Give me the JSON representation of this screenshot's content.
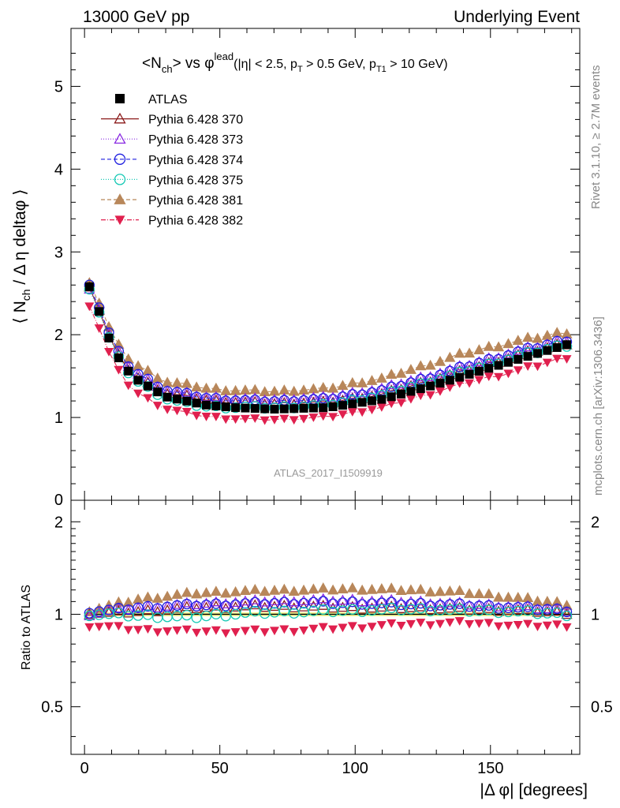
{
  "header": {
    "left": "13000 GeV pp",
    "right": "Underlying Event"
  },
  "plot_title": {
    "main": "<N",
    "main_sub": "ch",
    "main_rest": "> vs φ",
    "main_sup": "lead",
    "cut_open": "(|η| < 2.5, p",
    "cut_sub1": "T",
    "cut_mid": " > 0.5 GeV, p",
    "cut_sub2": "T1",
    "cut_close": " > 10 GeV)"
  },
  "side_text": {
    "rivet": "Rivet 3.1.10, ≥ 2.7M events",
    "mcplots": "mcplots.cern.ch [arXiv:1306.3436]"
  },
  "watermark": "ATLAS_2017_I1509919",
  "axes": {
    "top_ylabel_open": "⟨ N",
    "top_ylabel_sub": "ch",
    "top_ylabel_rest": " / Δ η deltaφ ⟩",
    "bottom_ylabel": "Ratio to ATLAS",
    "xlabel": "|Δ φ| [degrees]"
  },
  "colors": {
    "atlas": "#000000",
    "p370": "#8b1a1a",
    "p373": "#8a2be2",
    "p374": "#1f1fe0",
    "p375": "#14c8b4",
    "p381": "#b8875a",
    "p382": "#e0204e",
    "band": "#ffff99"
  },
  "legend": [
    {
      "name": "ATLAS",
      "marker": "square-filled",
      "color": "#000000",
      "dash": ""
    },
    {
      "name": "Pythia 6.428 370",
      "marker": "triangle-open",
      "color": "#8b1a1a",
      "dash": ""
    },
    {
      "name": "Pythia 6.428 373",
      "marker": "triangle-open",
      "color": "#8a2be2",
      "dash": "1,2"
    },
    {
      "name": "Pythia 6.428 374",
      "marker": "circle-open",
      "color": "#1f1fe0",
      "dash": "5,3"
    },
    {
      "name": "Pythia 6.428 375",
      "marker": "circle-open",
      "color": "#14c8b4",
      "dash": "1,2"
    },
    {
      "name": "Pythia 6.428 381",
      "marker": "triangle-filled",
      "color": "#b8875a",
      "dash": "5,3"
    },
    {
      "name": "Pythia 6.428 382",
      "marker": "triangledown-filled",
      "color": "#e0204e",
      "dash": "6,2,1,2"
    }
  ],
  "chart_data": {
    "type": "scatter",
    "x_range": [
      -5,
      183
    ],
    "top": {
      "ylim": [
        0,
        5.7
      ],
      "ytick_labels": [
        "1",
        "2",
        "3",
        "4",
        "5"
      ],
      "ytick_values": [
        1,
        2,
        3,
        4,
        5
      ],
      "y_zero_label": "0"
    },
    "bottom": {
      "ylim": [
        0.35,
        2.35
      ],
      "log_scale": true,
      "ytick_labels": [
        "0.5",
        "1",
        "2"
      ],
      "ytick_values": [
        0.5,
        1,
        2
      ]
    },
    "xtick_labels": [
      "0",
      "50",
      "100",
      "150"
    ],
    "xtick_values": [
      0,
      50,
      100,
      150
    ],
    "x_step": 3.6,
    "x_first": 1.8,
    "atlas_curve": {
      "description_points_x": [
        1.8,
        5.4,
        9,
        12.6,
        16.2,
        19.8,
        30,
        45,
        55,
        70,
        90,
        110,
        130,
        150,
        165,
        178.2
      ],
      "description_points_y": [
        2.58,
        2.28,
        1.96,
        1.72,
        1.56,
        1.45,
        1.25,
        1.15,
        1.12,
        1.1,
        1.12,
        1.22,
        1.4,
        1.6,
        1.75,
        1.88
      ]
    },
    "series_ratio_points_x": [
      1.8,
      10,
      20,
      40,
      60,
      80,
      100,
      120,
      140,
      160,
      178.2
    ],
    "series": [
      {
        "name": "Pythia 6.428 370",
        "ratio": [
          1.01,
          1.01,
          1.02,
          1.05,
          1.06,
          1.06,
          1.05,
          1.05,
          1.04,
          1.03,
          1.01
        ]
      },
      {
        "name": "Pythia 6.428 373",
        "ratio": [
          1.0,
          1.03,
          1.05,
          1.08,
          1.1,
          1.11,
          1.11,
          1.1,
          1.08,
          1.06,
          1.03
        ]
      },
      {
        "name": "Pythia 6.428 374",
        "ratio": [
          1.02,
          1.03,
          1.05,
          1.07,
          1.08,
          1.09,
          1.09,
          1.08,
          1.07,
          1.05,
          1.03
        ]
      },
      {
        "name": "Pythia 6.428 375",
        "ratio": [
          1.0,
          1.0,
          0.99,
          0.98,
          1.01,
          1.02,
          1.03,
          1.04,
          1.03,
          1.02,
          1.0
        ]
      },
      {
        "name": "Pythia 6.428 381",
        "ratio": [
          1.03,
          1.07,
          1.12,
          1.17,
          1.19,
          1.2,
          1.21,
          1.2,
          1.18,
          1.13,
          1.08
        ]
      },
      {
        "name": "Pythia 6.428 382",
        "ratio": [
          0.92,
          0.91,
          0.89,
          0.88,
          0.88,
          0.89,
          0.91,
          0.93,
          0.94,
          0.92,
          0.92
        ]
      }
    ]
  }
}
